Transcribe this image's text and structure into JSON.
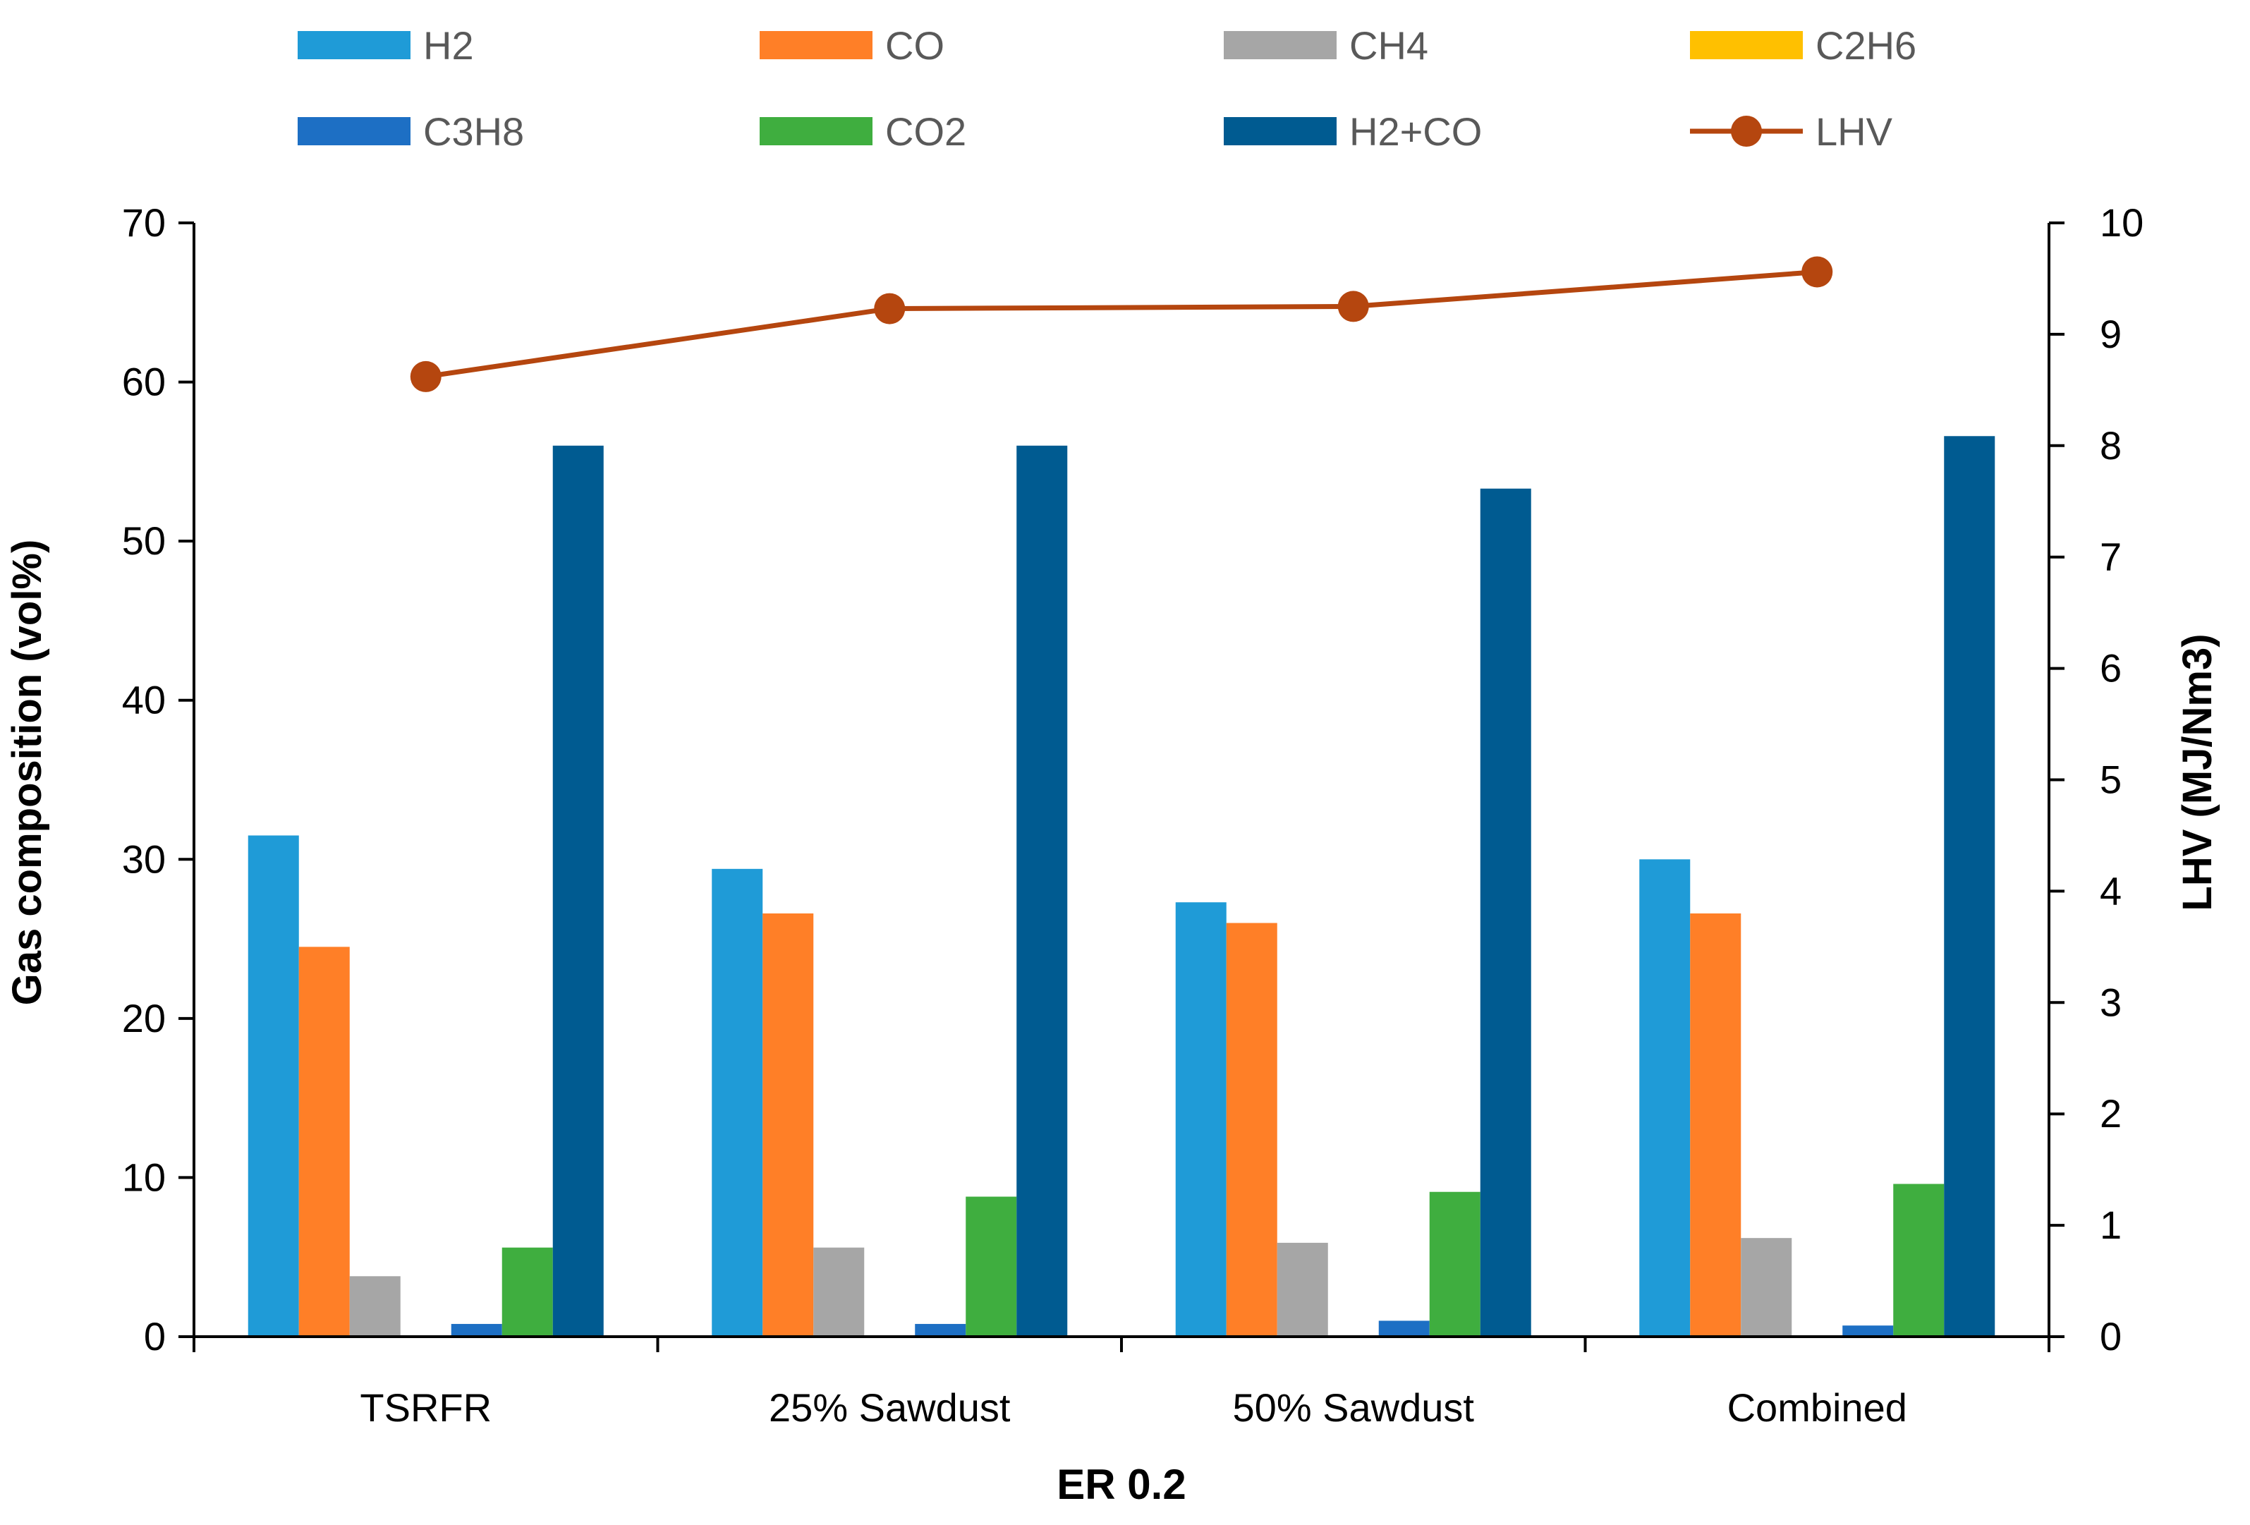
{
  "chart_data": {
    "type": "bar",
    "title": "",
    "xlabel": "ER 0.2",
    "ylabel": "Gas composition (vol%)",
    "y2label": "LHV (MJ/Nm3)",
    "categories": [
      "TSRFR",
      "25% Sawdust",
      "50% Sawdust",
      "Combined"
    ],
    "ylim": [
      0,
      70
    ],
    "y2lim": [
      0,
      10
    ],
    "yticks": [
      "0",
      "10",
      "20",
      "30",
      "40",
      "50",
      "60",
      "70"
    ],
    "y2ticks": [
      "0",
      "1",
      "2",
      "3",
      "4",
      "5",
      "6",
      "7",
      "8",
      "9",
      "10"
    ],
    "grid": false,
    "legend_position": "top",
    "series": [
      {
        "name": "H2",
        "color": "#1f9bd7",
        "values": [
          31.5,
          29.4,
          27.3,
          30.0
        ]
      },
      {
        "name": "CO",
        "color": "#ff7f27",
        "values": [
          24.5,
          26.6,
          26.0,
          26.6
        ]
      },
      {
        "name": "CH4",
        "color": "#a6a6a6",
        "values": [
          3.8,
          5.6,
          5.9,
          6.2
        ]
      },
      {
        "name": "C2H6",
        "color": "#ffc000",
        "values": [
          0.0,
          0.0,
          0.0,
          0.0
        ]
      },
      {
        "name": "C3H8",
        "color": "#1d6fc4",
        "values": [
          0.8,
          0.8,
          1.0,
          0.7
        ]
      },
      {
        "name": "CO2",
        "color": "#3fae3f",
        "values": [
          5.6,
          8.8,
          9.1,
          9.6
        ]
      },
      {
        "name": "H2+CO",
        "color": "#005b91",
        "values": [
          56.0,
          56.0,
          53.3,
          56.6
        ]
      }
    ],
    "line_series": {
      "name": "LHV",
      "color": "#b5460f",
      "axis": "right",
      "values": [
        8.62,
        9.23,
        9.25,
        9.56
      ]
    }
  }
}
